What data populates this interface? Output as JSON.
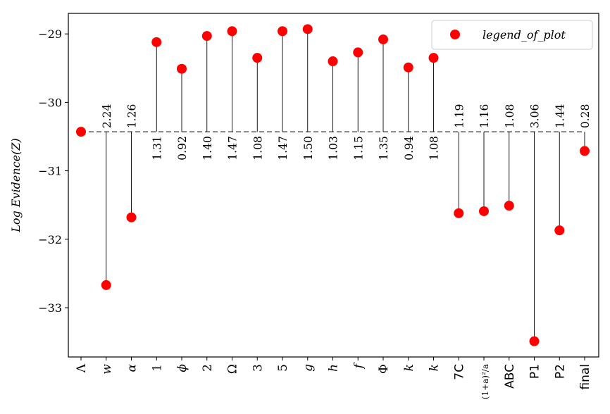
{
  "chart_data": {
    "type": "scatter",
    "title": "",
    "xlabel": "",
    "ylabel": "Log Evidence(Z)",
    "ylim": [
      -33.72,
      -28.7
    ],
    "yticks": [
      -29,
      -30,
      -31,
      -32,
      -33
    ],
    "ytick_labels": [
      "−29",
      "−30",
      "−31",
      "−32",
      "−33"
    ],
    "baseline": -30.43,
    "baseline_style": "dashed",
    "marker_color": "#ff0000",
    "line_color": "#000000",
    "grid": false,
    "legend": {
      "position": "top-right",
      "entries": [
        "legend_of_plot"
      ]
    },
    "categories": [
      "Λ",
      "w",
      "α",
      "1",
      "ϕ",
      "2",
      "Ω",
      "3",
      "5",
      "g",
      "h",
      "f",
      "Φ",
      "k",
      "k",
      "7C",
      "(1+a)²/a",
      "ABC",
      "P1",
      "P2",
      "final"
    ],
    "category_italic": [
      false,
      true,
      true,
      false,
      true,
      false,
      false,
      false,
      false,
      true,
      true,
      true,
      false,
      true,
      true,
      false,
      false,
      false,
      false,
      false,
      false
    ],
    "category_sans": [
      false,
      false,
      false,
      false,
      false,
      false,
      false,
      false,
      false,
      false,
      false,
      false,
      false,
      false,
      false,
      true,
      false,
      true,
      true,
      true,
      true
    ],
    "values": [
      -30.43,
      -32.67,
      -31.68,
      -29.12,
      -29.51,
      -29.03,
      -28.96,
      -29.35,
      -28.96,
      -28.93,
      -29.4,
      -29.27,
      -29.08,
      -29.49,
      -29.35,
      -31.62,
      -31.59,
      -31.51,
      -33.49,
      -31.87,
      -30.71
    ],
    "labels": [
      "",
      "2.24",
      "1.26",
      "1.31",
      "0.92",
      "1.40",
      "1.47",
      "1.08",
      "1.47",
      "1.50",
      "1.03",
      "1.15",
      "1.35",
      "0.94",
      "1.08",
      "1.19",
      "1.16",
      "1.08",
      "3.06",
      "1.44",
      "0.28"
    ],
    "series": [
      {
        "name": "legend_of_plot"
      }
    ]
  }
}
